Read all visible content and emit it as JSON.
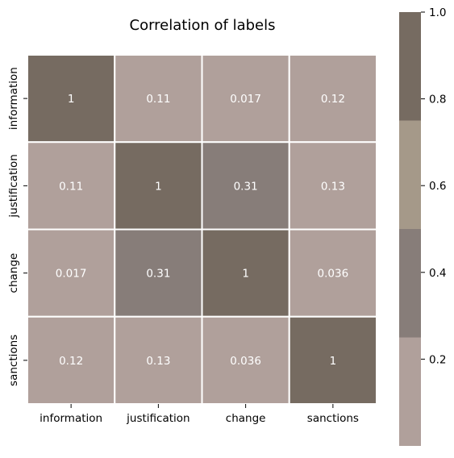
{
  "chart_data": {
    "type": "heatmap",
    "title": "Correlation of labels",
    "xlabel": "",
    "ylabel": "",
    "x_categories": [
      "information",
      "justification",
      "change",
      "sanctions"
    ],
    "y_categories": [
      "information",
      "justification",
      "change",
      "sanctions"
    ],
    "values": [
      [
        1,
        0.11,
        0.017,
        0.12
      ],
      [
        0.11,
        1,
        0.31,
        0.13
      ],
      [
        0.017,
        0.31,
        1,
        0.036
      ],
      [
        0.12,
        0.13,
        0.036,
        1
      ]
    ],
    "cell_labels": [
      [
        "1",
        "0.11",
        "0.017",
        "0.12"
      ],
      [
        "0.11",
        "1",
        "0.31",
        "0.13"
      ],
      [
        "0.017",
        "0.31",
        "1",
        "0.036"
      ],
      [
        "0.12",
        "0.13",
        "0.036",
        "1"
      ]
    ],
    "colorbar": {
      "vmin": 0.0,
      "vmax": 1.0,
      "bins": [
        {
          "from": 0.0,
          "to": 0.25,
          "color": "#b0a09b"
        },
        {
          "from": 0.25,
          "to": 0.5,
          "color": "#877d79"
        },
        {
          "from": 0.5,
          "to": 0.75,
          "color": "#a59989"
        },
        {
          "from": 0.75,
          "to": 1.0,
          "color": "#766b61"
        }
      ],
      "ticks": [
        0.2,
        0.4,
        0.6,
        0.8,
        1.0
      ],
      "tick_labels": [
        "0.2",
        "0.4",
        "0.6",
        "0.8",
        "1.0"
      ]
    },
    "annotation_color": "#ffffff",
    "cell_border_color": "#ffffff",
    "grid": false
  }
}
